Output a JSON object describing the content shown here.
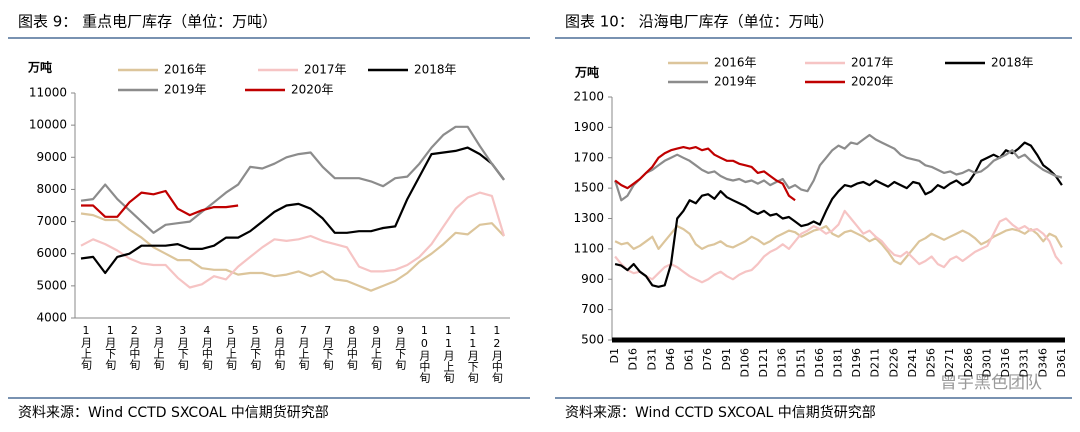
{
  "chart_data": [
    {
      "type": "line",
      "title": "图表 9：  重点电厂库存（单位：万吨）",
      "y_label": "万吨",
      "source": "资料来源：Wind CCTD SXCOAL 中信期货研究部",
      "categories": [
        "1月上旬",
        null,
        "1月下旬",
        null,
        "2月中旬",
        null,
        "3月上旬",
        null,
        "3月下旬",
        null,
        "4月中旬",
        null,
        "5月上旬",
        null,
        "5月下旬",
        null,
        "6月中旬",
        null,
        "7月上旬",
        null,
        "7月下旬",
        null,
        "8月中旬",
        null,
        "9月上旬",
        null,
        "9月下旬",
        null,
        "10月中旬",
        null,
        "11月上旬",
        null,
        "11月下旬",
        null,
        "12月中旬",
        null
      ],
      "ylim": [
        4000,
        11000
      ],
      "yticks": [
        4000,
        5000,
        6000,
        7000,
        8000,
        9000,
        10000,
        11000
      ],
      "series": [
        {
          "name": "2016年",
          "color": "#dcc59b",
          "values": [
            7250,
            7200,
            7050,
            7050,
            6750,
            6500,
            6200,
            6000,
            5800,
            5800,
            5550,
            5500,
            5500,
            5350,
            5400,
            5400,
            5300,
            5350,
            5450,
            5300,
            5450,
            5200,
            5150,
            5000,
            4850,
            5000,
            5150,
            5400,
            5750,
            6000,
            6300,
            6650,
            6600,
            6900,
            6950,
            6550
          ]
        },
        {
          "name": "2017年",
          "color": "#f6c4c4",
          "values": [
            6250,
            6450,
            6300,
            6100,
            5850,
            5700,
            5650,
            5650,
            5250,
            4950,
            5050,
            5300,
            5200,
            5600,
            5900,
            6200,
            6450,
            6400,
            6450,
            6550,
            6400,
            6300,
            6200,
            5600,
            5450,
            5450,
            5500,
            5650,
            5900,
            6300,
            6850,
            7400,
            7750,
            7900,
            7800,
            6550
          ]
        },
        {
          "name": "2018年",
          "color": "#000000",
          "values": [
            5850,
            5900,
            5400,
            5900,
            6000,
            6250,
            6250,
            6250,
            6300,
            6150,
            6150,
            6250,
            6500,
            6500,
            6700,
            7000,
            7300,
            7500,
            7550,
            7400,
            7100,
            6650,
            6650,
            6700,
            6700,
            6800,
            6850,
            7700,
            8400,
            9100,
            9150,
            9200,
            9300,
            9100,
            8800,
            8300
          ]
        },
        {
          "name": "2019年",
          "color": "#8c8c8c",
          "values": [
            7650,
            7700,
            8150,
            7700,
            7350,
            7000,
            6650,
            6900,
            6950,
            7000,
            7300,
            7600,
            7900,
            8150,
            8700,
            8650,
            8800,
            9000,
            9100,
            9150,
            8700,
            8350,
            8350,
            8350,
            8250,
            8100,
            8350,
            8400,
            8800,
            9300,
            9700,
            9950,
            9950,
            9350,
            8800,
            8300
          ]
        },
        {
          "name": "2020年",
          "color": "#c00000",
          "values": [
            7500,
            7500,
            7150,
            7150,
            7600,
            7900,
            7850,
            7950,
            7400,
            7200,
            7350,
            7450,
            7450,
            7500,
            null,
            null,
            null,
            null,
            null,
            null,
            null,
            null,
            null,
            null,
            null,
            null,
            null,
            null,
            null,
            null,
            null,
            null,
            null,
            null,
            null,
            null
          ]
        }
      ]
    },
    {
      "type": "line",
      "title": "图表 10：  沿海电厂库存（单位：万吨）",
      "y_label": "万吨",
      "source": "资料来源：Wind CCTD SXCOAL 中信期货研究部",
      "categories": [
        "D1",
        null,
        null,
        "D16",
        null,
        null,
        "D31",
        null,
        null,
        "D46",
        null,
        null,
        "D61",
        null,
        null,
        "D76",
        null,
        null,
        "D91",
        null,
        null,
        "D106",
        null,
        null,
        "D121",
        null,
        null,
        "D136",
        null,
        null,
        "D151",
        null,
        null,
        "D166",
        null,
        null,
        "D181",
        null,
        null,
        "D196",
        null,
        null,
        "D211",
        null,
        null,
        "D226",
        null,
        null,
        "D241",
        null,
        null,
        "D256",
        null,
        null,
        "D271",
        null,
        null,
        "D286",
        null,
        null,
        "D301",
        null,
        null,
        "D316",
        null,
        null,
        "D331",
        null,
        null,
        "D346",
        null,
        null,
        "D361"
      ],
      "ylim": [
        500,
        2100
      ],
      "yticks": [
        500,
        700,
        900,
        1100,
        1300,
        1500,
        1700,
        1900,
        2100
      ],
      "series": [
        {
          "name": "2016年",
          "color": "#dcc59b",
          "values": [
            1150,
            1130,
            1140,
            1100,
            1120,
            1150,
            1180,
            1100,
            1150,
            1200,
            1250,
            1230,
            1200,
            1130,
            1100,
            1120,
            1130,
            1150,
            1120,
            1110,
            1130,
            1150,
            1180,
            1160,
            1130,
            1150,
            1180,
            1200,
            1220,
            1210,
            1180,
            1200,
            1220,
            1230,
            1250,
            1200,
            1180,
            1210,
            1220,
            1200,
            1180,
            1150,
            1170,
            1130,
            1080,
            1020,
            1000,
            1050,
            1100,
            1150,
            1170,
            1200,
            1180,
            1160,
            1180,
            1200,
            1220,
            1200,
            1170,
            1130,
            1150,
            1180,
            1200,
            1220,
            1230,
            1220,
            1200,
            1230,
            1200,
            1150,
            1200,
            1180,
            1110
          ]
        },
        {
          "name": "2017年",
          "color": "#f6c4c4",
          "values": [
            1050,
            1000,
            960,
            940,
            950,
            920,
            900,
            940,
            980,
            1000,
            980,
            950,
            920,
            900,
            880,
            900,
            930,
            950,
            920,
            900,
            930,
            950,
            960,
            1000,
            1050,
            1080,
            1100,
            1130,
            1100,
            1150,
            1200,
            1220,
            1250,
            1230,
            1200,
            1220,
            1260,
            1350,
            1300,
            1250,
            1200,
            1220,
            1180,
            1150,
            1100,
            1060,
            1050,
            1080,
            1040,
            1000,
            1020,
            1050,
            1000,
            980,
            1030,
            1050,
            1020,
            1050,
            1080,
            1100,
            1120,
            1200,
            1280,
            1300,
            1260,
            1230,
            1250,
            1220,
            1230,
            1200,
            1150,
            1050,
            1000
          ]
        },
        {
          "name": "2018年",
          "color": "#000000",
          "values": [
            1000,
            990,
            960,
            1000,
            950,
            920,
            860,
            850,
            860,
            1000,
            1300,
            1350,
            1420,
            1400,
            1450,
            1460,
            1430,
            1480,
            1440,
            1420,
            1400,
            1380,
            1350,
            1330,
            1350,
            1320,
            1330,
            1300,
            1310,
            1280,
            1250,
            1260,
            1280,
            1260,
            1350,
            1430,
            1480,
            1520,
            1510,
            1530,
            1540,
            1520,
            1550,
            1530,
            1510,
            1540,
            1520,
            1500,
            1540,
            1530,
            1460,
            1480,
            1520,
            1500,
            1530,
            1550,
            1520,
            1540,
            1600,
            1680,
            1700,
            1720,
            1700,
            1750,
            1730,
            1760,
            1800,
            1780,
            1720,
            1650,
            1620,
            1580,
            1520
          ]
        },
        {
          "name": "2019年",
          "color": "#8c8c8c",
          "values": [
            1550,
            1420,
            1450,
            1520,
            1560,
            1600,
            1620,
            1650,
            1680,
            1700,
            1720,
            1700,
            1680,
            1650,
            1620,
            1600,
            1610,
            1580,
            1560,
            1550,
            1560,
            1540,
            1550,
            1530,
            1550,
            1520,
            1540,
            1560,
            1500,
            1520,
            1490,
            1480,
            1550,
            1650,
            1700,
            1750,
            1780,
            1760,
            1800,
            1790,
            1820,
            1850,
            1820,
            1800,
            1780,
            1760,
            1720,
            1700,
            1690,
            1680,
            1650,
            1640,
            1620,
            1600,
            1610,
            1590,
            1600,
            1620,
            1600,
            1610,
            1640,
            1680,
            1700,
            1720,
            1750,
            1700,
            1720,
            1680,
            1650,
            1620,
            1600,
            1580,
            1570
          ]
        },
        {
          "name": "2020年",
          "color": "#c00000",
          "values": [
            1550,
            1520,
            1500,
            1530,
            1560,
            1600,
            1640,
            1700,
            1730,
            1750,
            1760,
            1770,
            1760,
            1770,
            1750,
            1760,
            1720,
            1700,
            1680,
            1680,
            1660,
            1650,
            1640,
            1600,
            1610,
            1580,
            1550,
            1530,
            1450,
            1420,
            null,
            null,
            null,
            null,
            null,
            null,
            null,
            null,
            null,
            null,
            null,
            null,
            null,
            null,
            null,
            null,
            null,
            null,
            null,
            null,
            null,
            null,
            null,
            null,
            null,
            null,
            null,
            null,
            null,
            null,
            null,
            null,
            null,
            null,
            null,
            null,
            null,
            null,
            null,
            null,
            null,
            null,
            null
          ]
        }
      ]
    }
  ],
  "watermark": "曾宇黑色团队"
}
